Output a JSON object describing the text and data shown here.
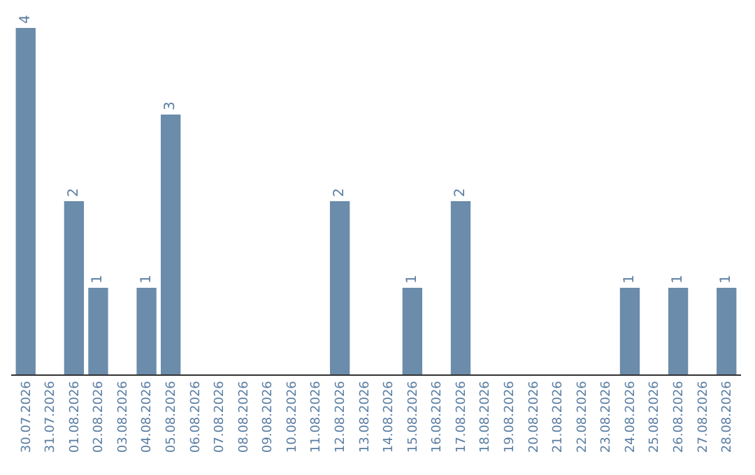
{
  "chart_data": {
    "type": "bar",
    "categories": [
      "30.07.2026",
      "31.07.2026",
      "01.08.2026",
      "02.08.2026",
      "03.08.2026",
      "04.08.2026",
      "05.08.2026",
      "06.08.2026",
      "07.08.2026",
      "08.08.2026",
      "09.08.2026",
      "10.08.2026",
      "11.08.2026",
      "12.08.2026",
      "13.08.2026",
      "14.08.2026",
      "15.08.2026",
      "16.08.2026",
      "17.08.2026",
      "18.08.2026",
      "19.08.2026",
      "20.08.2026",
      "21.08.2026",
      "22.08.2026",
      "23.08.2026",
      "24.08.2026",
      "25.08.2026",
      "26.08.2026",
      "27.08.2026",
      "28.08.2026"
    ],
    "values": [
      4,
      0,
      2,
      1,
      0,
      1,
      3,
      0,
      0,
      0,
      0,
      0,
      0,
      2,
      0,
      0,
      1,
      0,
      2,
      0,
      0,
      0,
      0,
      0,
      0,
      1,
      0,
      1,
      0,
      1
    ],
    "value_labels": [
      "4",
      null,
      "2",
      "1",
      null,
      "1",
      "3",
      null,
      null,
      null,
      null,
      null,
      null,
      "2",
      null,
      null,
      "1",
      null,
      "2",
      null,
      null,
      null,
      null,
      null,
      null,
      "1",
      null,
      "1",
      null,
      "1"
    ],
    "color": "#6b8cab",
    "tick_labels": "x"
  }
}
